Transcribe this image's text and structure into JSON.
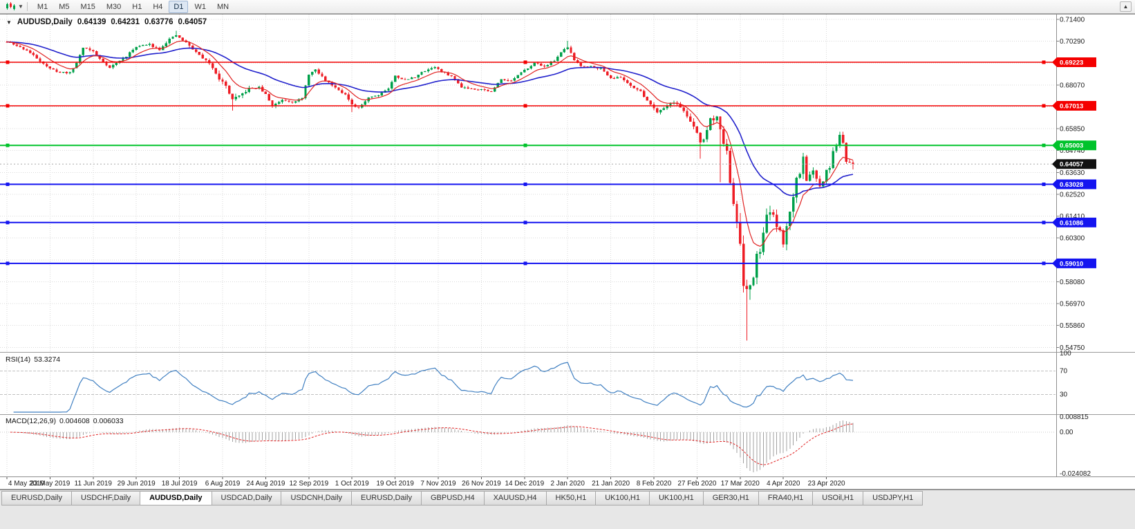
{
  "toolbar": {
    "timeframes": [
      "M1",
      "M5",
      "M15",
      "M30",
      "H1",
      "H4",
      "D1",
      "W1",
      "MN"
    ],
    "active_timeframe": "D1"
  },
  "chart": {
    "title": "AUDUSD,Daily",
    "ohlc": {
      "open": "0.64139",
      "high": "0.64231",
      "low": "0.63776",
      "close": "0.64057"
    },
    "price_axis_labels": [
      "0.71400",
      "0.70290",
      "0.69180",
      "0.68070",
      "0.66960",
      "0.65850",
      "0.64740",
      "0.63630",
      "0.62520",
      "0.61410",
      "0.60300",
      "0.59190",
      "0.58080",
      "0.56970",
      "0.55860",
      "0.54750"
    ],
    "date_labels": [
      "4 May 2019",
      "23 May 2019",
      "11 Jun 2019",
      "29 Jun 2019",
      "18 Jul 2019",
      "6 Aug 2019",
      "24 Aug 2019",
      "12 Sep 2019",
      "1 Oct 2019",
      "19 Oct 2019",
      "7 Nov 2019",
      "26 Nov 2019",
      "14 Dec 2019",
      "2 Jan 2020",
      "21 Jan 2020",
      "8 Feb 2020",
      "27 Feb 2020",
      "17 Mar 2020",
      "4 Apr 2020",
      "23 Apr 2020"
    ],
    "levels": [
      {
        "value": 0.69223,
        "label": "0.69223",
        "color": "#f40000",
        "width": 1.4
      },
      {
        "value": 0.67013,
        "label": "0.67013",
        "color": "#f40000",
        "width": 1.4
      },
      {
        "value": 0.65003,
        "label": "0.65003",
        "color": "#00c32b",
        "width": 2
      },
      {
        "value": 0.63028,
        "label": "0.63028",
        "color": "#1414f0",
        "width": 2
      },
      {
        "value": 0.61086,
        "label": "0.61086",
        "color": "#1414f0",
        "width": 2
      },
      {
        "value": 0.5901,
        "label": "0.59010",
        "color": "#1414f0",
        "width": 2
      }
    ],
    "current_price": {
      "value": 0.64057,
      "label": "0.64057",
      "color": "#111111"
    }
  },
  "chart_data": {
    "type": "candlestick",
    "symbol": "AUDUSD",
    "period": "Daily",
    "bars": 256,
    "seed": 11,
    "y_axis": {
      "top": 0.714,
      "step": 0.0111
    },
    "colors": {
      "up": "#00a04a",
      "down": "#ee1c24",
      "ma_fast": "#e02222",
      "ma_slow": "#2020cc",
      "grid": "#d9d9d9",
      "background": "#ffffff"
    },
    "ma_fast_period": 9,
    "ma_slow_period": 34,
    "close_anchors": [
      [
        0,
        0.7025
      ],
      [
        3,
        0.7005
      ],
      [
        6,
        0.6983
      ],
      [
        10,
        0.693
      ],
      [
        13,
        0.6888
      ],
      [
        16,
        0.6872
      ],
      [
        19,
        0.6868
      ],
      [
        21,
        0.692
      ],
      [
        23,
        0.6998
      ],
      [
        26,
        0.6978
      ],
      [
        28,
        0.694
      ],
      [
        31,
        0.6895
      ],
      [
        33,
        0.6918
      ],
      [
        36,
        0.6953
      ],
      [
        39,
        0.7003
      ],
      [
        43,
        0.7012
      ],
      [
        46,
        0.6988
      ],
      [
        49,
        0.704
      ],
      [
        51,
        0.7058
      ],
      [
        54,
        0.7022
      ],
      [
        57,
        0.6973
      ],
      [
        60,
        0.693
      ],
      [
        62,
        0.6898
      ],
      [
        64,
        0.684
      ],
      [
        66,
        0.68
      ],
      [
        68,
        0.6733
      ],
      [
        70,
        0.6748
      ],
      [
        73,
        0.6788
      ],
      [
        76,
        0.6793
      ],
      [
        78,
        0.6758
      ],
      [
        80,
        0.67
      ],
      [
        83,
        0.6733
      ],
      [
        86,
        0.6722
      ],
      [
        89,
        0.6738
      ],
      [
        91,
        0.6863
      ],
      [
        93,
        0.6882
      ],
      [
        96,
        0.6832
      ],
      [
        99,
        0.6795
      ],
      [
        102,
        0.6758
      ],
      [
        104,
        0.6702
      ],
      [
        106,
        0.6688
      ],
      [
        109,
        0.6745
      ],
      [
        112,
        0.6757
      ],
      [
        115,
        0.679
      ],
      [
        117,
        0.6853
      ],
      [
        120,
        0.6832
      ],
      [
        123,
        0.6848
      ],
      [
        126,
        0.688
      ],
      [
        129,
        0.69
      ],
      [
        131,
        0.6873
      ],
      [
        134,
        0.6852
      ],
      [
        137,
        0.6798
      ],
      [
        140,
        0.6788
      ],
      [
        143,
        0.6785
      ],
      [
        146,
        0.6772
      ],
      [
        149,
        0.6838
      ],
      [
        152,
        0.6828
      ],
      [
        156,
        0.6882
      ],
      [
        159,
        0.6918
      ],
      [
        162,
        0.6902
      ],
      [
        165,
        0.6932
      ],
      [
        168,
        0.6988
      ],
      [
        169,
        0.7
      ],
      [
        171,
        0.6933
      ],
      [
        173,
        0.6905
      ],
      [
        176,
        0.6902
      ],
      [
        179,
        0.689
      ],
      [
        182,
        0.6843
      ],
      [
        185,
        0.6845
      ],
      [
        188,
        0.6805
      ],
      [
        191,
        0.6772
      ],
      [
        194,
        0.6708
      ],
      [
        196,
        0.6672
      ],
      [
        198,
        0.6692
      ],
      [
        201,
        0.6722
      ],
      [
        204,
        0.6678
      ],
      [
        206,
        0.6618
      ],
      [
        208,
        0.6562
      ],
      [
        209,
        0.6515
      ],
      [
        210,
        0.6532
      ],
      [
        212,
        0.6632
      ],
      [
        214,
        0.6642
      ],
      [
        215,
        0.6582
      ],
      [
        216,
        0.6495
      ],
      [
        217,
        0.6487
      ],
      [
        218,
        0.629
      ],
      [
        219,
        0.6185
      ],
      [
        220,
        0.612
      ],
      [
        221,
        0.5988
      ],
      [
        222,
        0.5782
      ],
      [
        223,
        0.5745
      ],
      [
        224,
        0.5798
      ],
      [
        225,
        0.5822
      ],
      [
        226,
        0.5965
      ],
      [
        227,
        0.5952
      ],
      [
        228,
        0.6052
      ],
      [
        229,
        0.6163
      ],
      [
        230,
        0.6158
      ],
      [
        231,
        0.6133
      ],
      [
        232,
        0.6072
      ],
      [
        233,
        0.6058
      ],
      [
        234,
        0.5992
      ],
      [
        235,
        0.6085
      ],
      [
        236,
        0.6172
      ],
      [
        237,
        0.6232
      ],
      [
        238,
        0.6345
      ],
      [
        239,
        0.6352
      ],
      [
        240,
        0.6438
      ],
      [
        241,
        0.6325
      ],
      [
        242,
        0.6363
      ],
      [
        243,
        0.6367
      ],
      [
        244,
        0.6333
      ],
      [
        245,
        0.6282
      ],
      [
        246,
        0.632
      ],
      [
        247,
        0.6372
      ],
      [
        248,
        0.6392
      ],
      [
        249,
        0.6463
      ],
      [
        250,
        0.6495
      ],
      [
        251,
        0.6548
      ],
      [
        252,
        0.6512
      ],
      [
        253,
        0.6422
      ],
      [
        254,
        0.64139
      ],
      [
        255,
        0.64057
      ]
    ],
    "volatility_anchors": [
      [
        0,
        0.0016
      ],
      [
        50,
        0.0016
      ],
      [
        61,
        0.0022
      ],
      [
        66,
        0.0034
      ],
      [
        69,
        0.003
      ],
      [
        74,
        0.0018
      ],
      [
        100,
        0.0016
      ],
      [
        104,
        0.0026
      ],
      [
        107,
        0.0016
      ],
      [
        160,
        0.0014
      ],
      [
        190,
        0.0018
      ],
      [
        205,
        0.0026
      ],
      [
        208,
        0.005
      ],
      [
        211,
        0.0038
      ],
      [
        214,
        0.0045
      ],
      [
        216,
        0.006
      ],
      [
        218,
        0.008
      ],
      [
        221,
        0.0095
      ],
      [
        223,
        0.011
      ],
      [
        226,
        0.0085
      ],
      [
        230,
        0.0065
      ],
      [
        235,
        0.006
      ],
      [
        240,
        0.005
      ],
      [
        246,
        0.0038
      ],
      [
        252,
        0.0032
      ],
      [
        255,
        0.0022
      ]
    ],
    "wick_overrides": [
      {
        "bar": 51,
        "high": 0.7082
      },
      {
        "bar": 68,
        "low": 0.6677
      },
      {
        "bar": 104,
        "low": 0.667
      },
      {
        "bar": 169,
        "high": 0.7032
      },
      {
        "bar": 209,
        "low": 0.6433
      },
      {
        "bar": 215,
        "low": 0.6313
      },
      {
        "bar": 223,
        "low": 0.551
      },
      {
        "bar": 251,
        "high": 0.657
      }
    ],
    "last_bar": {
      "open": 0.64139,
      "high": 0.64231,
      "low": 0.63776,
      "close": 0.64057
    }
  },
  "rsi": {
    "label": "RSI(14)",
    "value": "53.3274",
    "period": 14,
    "axis_labels": [
      "100",
      "70",
      "30"
    ],
    "upper_level": 70,
    "lower_level": 30,
    "color": "#3f7fc1"
  },
  "macd": {
    "label": "MACD(12,26,9)",
    "macd_value": "0.004608",
    "signal_value": "0.006033",
    "fast": 12,
    "slow": 26,
    "signal": 9,
    "axis_labels": [
      "0.008815",
      "0.00",
      "-0.024082"
    ],
    "histogram_color": "#a0a0a0",
    "signal_color": "#e02222"
  },
  "tabs": {
    "items": [
      "EURUSD,Daily",
      "USDCHF,Daily",
      "AUDUSD,Daily",
      "USDCAD,Daily",
      "USDCNH,Daily",
      "EURUSD,Daily",
      "GBPUSD,H4",
      "XAUUSD,H4",
      "HK50,H1",
      "UK100,H1",
      "UK100,H1",
      "GER30,H1",
      "FRA40,H1",
      "USOil,H1",
      "USDJPY,H1"
    ],
    "active_index": 2
  }
}
